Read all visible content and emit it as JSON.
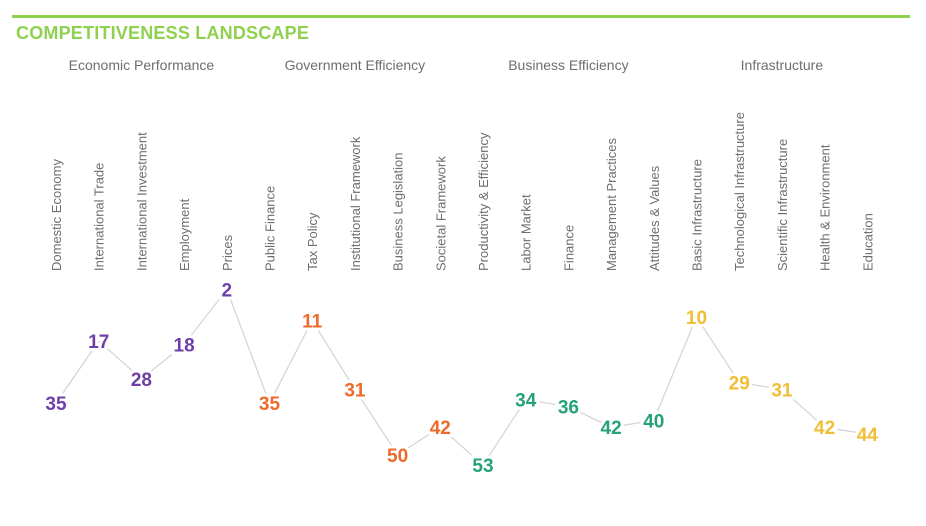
{
  "title": "COMPETITIVENESS LANDSCAPE",
  "chart_data": {
    "type": "line",
    "title": "COMPETITIVENESS LANDSCAPE",
    "y_meaning": "rank (lower number plotted higher)",
    "groups": [
      {
        "name": "Economic Performance",
        "color": "#6f3fa8",
        "categories": [
          "Domestic Economy",
          "International Trade",
          "International Investment",
          "Employment",
          "Prices"
        ],
        "values": [
          35,
          17,
          28,
          18,
          2
        ]
      },
      {
        "name": "Government Efficiency",
        "color": "#ee6a2b",
        "categories": [
          "Public Finance",
          "Tax Policy",
          "Institutional Framework",
          "Business Legislation",
          "Societal Framework"
        ],
        "values": [
          35,
          11,
          31,
          50,
          42
        ]
      },
      {
        "name": "Business Efficiency",
        "color": "#25a377",
        "categories": [
          "Productivity & Efficiency",
          "Labor Market",
          "Finance",
          "Management Practices",
          "Attitudes & Values"
        ],
        "values": [
          53,
          34,
          36,
          42,
          40
        ]
      },
      {
        "name": "Infrastructure",
        "color": "#f0be35",
        "categories": [
          "Basic Infrastructure",
          "Technological Infrastructure",
          "Scientific Infrastructure",
          "Health & Environment",
          "Education"
        ],
        "values": [
          10,
          29,
          31,
          42,
          44
        ]
      }
    ],
    "ylim": [
      1,
      55
    ],
    "grid": false,
    "legend": "none"
  }
}
